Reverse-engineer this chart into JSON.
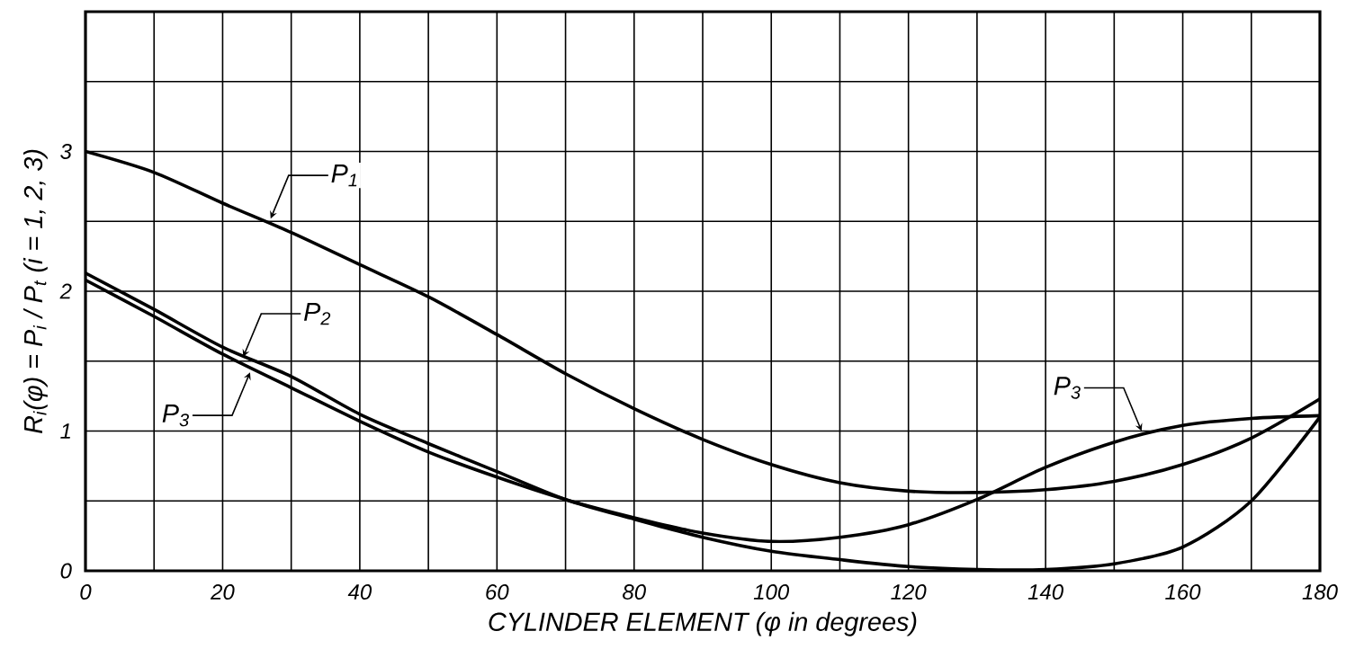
{
  "chart_data": {
    "type": "line",
    "xlabel": "CYLINDER ELEMENT (φ in degrees)",
    "ylabel": "R$_{i}$(φ) = P$_{i}$ / P$_{t}$  (i = 1, 2, 3)",
    "xlim": [
      0,
      180
    ],
    "ylim": [
      0,
      4
    ],
    "xticks": [
      0,
      {
        "value": 10,
        "label": null
      },
      20,
      {
        "value": 30,
        "label": null
      },
      40,
      {
        "value": 50,
        "label": null
      },
      60,
      {
        "value": 70,
        "label": null
      },
      80,
      {
        "value": 90,
        "label": null
      },
      100,
      {
        "value": 110,
        "label": null
      },
      120,
      {
        "value": 130,
        "label": null
      },
      140,
      {
        "value": 150,
        "label": null
      },
      160,
      {
        "value": 170,
        "label": null
      },
      180
    ],
    "yticks": [
      0,
      {
        "value": 0.5,
        "label": null
      },
      1,
      {
        "value": 1.5,
        "label": null
      },
      2,
      {
        "value": 2.5,
        "label": null
      },
      3,
      {
        "value": 3.5,
        "label": null
      },
      {
        "value": 4,
        "label": null
      }
    ],
    "grid": true,
    "marker": "none",
    "line_style": "solid",
    "x": [
      0,
      10,
      20,
      30,
      40,
      50,
      60,
      70,
      80,
      90,
      100,
      110,
      120,
      130,
      140,
      150,
      160,
      170,
      180
    ],
    "series": [
      {
        "color": "#000000",
        "values": [
          3.0,
          2.85,
          2.63,
          2.42,
          2.19,
          1.96,
          1.69,
          1.41,
          1.16,
          0.94,
          0.76,
          0.63,
          0.57,
          0.56,
          0.58,
          0.64,
          0.76,
          0.95,
          1.23
        ]
      },
      {
        "color": "#000000",
        "values": [
          2.13,
          1.87,
          1.6,
          1.39,
          1.12,
          0.91,
          0.71,
          0.51,
          0.37,
          0.24,
          0.14,
          0.08,
          0.03,
          0.01,
          0.01,
          0.05,
          0.17,
          0.5,
          1.1
        ]
      },
      {
        "color": "#000000",
        "values": [
          2.08,
          1.82,
          1.55,
          1.31,
          1.07,
          0.85,
          0.67,
          0.51,
          0.38,
          0.27,
          0.21,
          0.24,
          0.33,
          0.51,
          0.74,
          0.92,
          1.04,
          1.09,
          1.11
        ]
      }
    ],
    "annotations": [
      {
        "text": "P$_{1}$",
        "x": 27,
        "y": 2.52
      },
      {
        "text": "P$_{2}$",
        "x": 23,
        "y": 1.53
      },
      {
        "text": "P$_{3}$",
        "x": 24,
        "y": 1.42
      },
      {
        "text": "P$_{3}$",
        "x": 154,
        "y": 1.0
      }
    ]
  }
}
